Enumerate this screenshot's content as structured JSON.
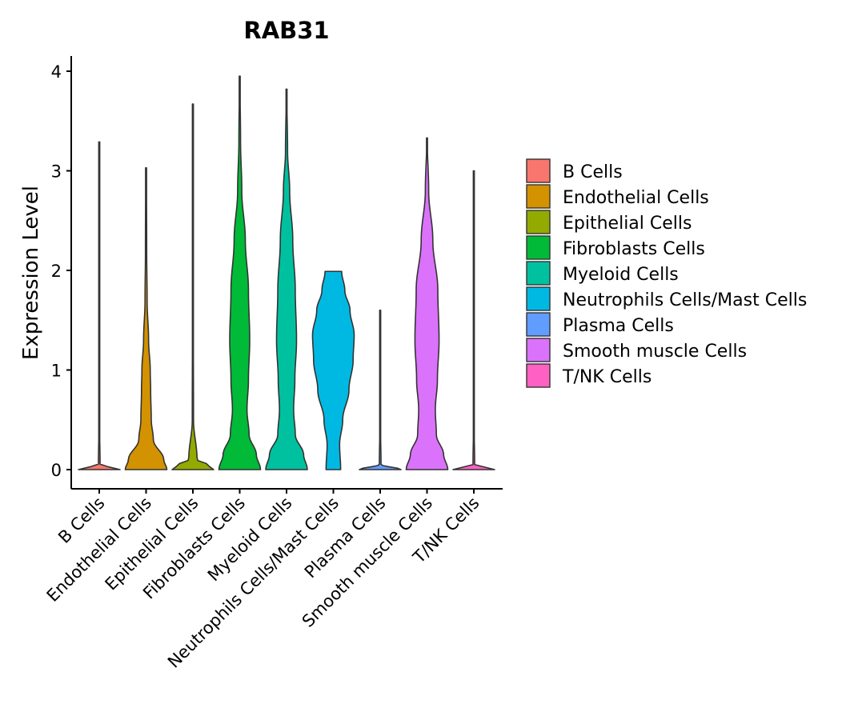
{
  "chart_data": {
    "type": "violin",
    "title": "RAB31",
    "xlabel": "",
    "ylabel": "Expression Level",
    "ylim": [
      -0.19,
      4.15
    ],
    "yticks": [
      0,
      1,
      2,
      3,
      4
    ],
    "grid": false,
    "legend_position": "right",
    "categories": [
      "B Cells",
      "Endothelial Cells",
      "Epithelial Cells",
      "Fibroblasts Cells",
      "Myeloid Cells",
      "Neutrophils Cells/Mast Cells",
      "Plasma Cells",
      "Smooth muscle Cells",
      "T/NK Cells"
    ],
    "series": [
      {
        "name": "B Cells",
        "color": "#F8766D",
        "min": 0,
        "max": 3.29,
        "density_profile": [
          [
            0,
            1
          ],
          [
            0.05,
            0.04
          ],
          [
            0.5,
            0.01
          ],
          [
            3.29,
            0.01
          ]
        ]
      },
      {
        "name": "Endothelial Cells",
        "color": "#D39200",
        "min": 0,
        "max": 3.03,
        "density_profile": [
          [
            0,
            1
          ],
          [
            0.1,
            0.85
          ],
          [
            0.3,
            0.35
          ],
          [
            0.5,
            0.25
          ],
          [
            0.8,
            0.22
          ],
          [
            1.0,
            0.2
          ],
          [
            1.3,
            0.12
          ],
          [
            1.7,
            0.05
          ],
          [
            2.2,
            0.03
          ],
          [
            3.03,
            0.02
          ]
        ]
      },
      {
        "name": "Epithelial Cells",
        "color": "#93AA00",
        "min": 0,
        "max": 3.67,
        "density_profile": [
          [
            0,
            1
          ],
          [
            0.05,
            0.7
          ],
          [
            0.1,
            0.2
          ],
          [
            0.5,
            0.03
          ],
          [
            1.5,
            0.02
          ],
          [
            3.67,
            0.01
          ]
        ]
      },
      {
        "name": "Fibroblasts Cells",
        "color": "#00BA38",
        "min": 0,
        "max": 3.95,
        "density_profile": [
          [
            0,
            1
          ],
          [
            0.15,
            0.8
          ],
          [
            0.35,
            0.45
          ],
          [
            0.6,
            0.35
          ],
          [
            0.9,
            0.42
          ],
          [
            1.3,
            0.48
          ],
          [
            1.8,
            0.42
          ],
          [
            2.3,
            0.27
          ],
          [
            2.8,
            0.1
          ],
          [
            3.3,
            0.04
          ],
          [
            3.95,
            0.01
          ]
        ]
      },
      {
        "name": "Myeloid Cells",
        "color": "#00C19F",
        "min": 0,
        "max": 3.82,
        "density_profile": [
          [
            0,
            1
          ],
          [
            0.15,
            0.82
          ],
          [
            0.35,
            0.42
          ],
          [
            0.6,
            0.34
          ],
          [
            0.9,
            0.4
          ],
          [
            1.3,
            0.48
          ],
          [
            1.8,
            0.42
          ],
          [
            2.3,
            0.3
          ],
          [
            2.8,
            0.15
          ],
          [
            3.2,
            0.05
          ],
          [
            3.82,
            0.01
          ]
        ]
      },
      {
        "name": "Neutrophils Cells/Mast Cells",
        "color": "#00B9E3",
        "min": 0,
        "max": 1.99,
        "density_profile": [
          [
            0,
            0.35
          ],
          [
            0.25,
            0.3
          ],
          [
            0.5,
            0.45
          ],
          [
            0.8,
            0.75
          ],
          [
            1.1,
            0.95
          ],
          [
            1.35,
            1.0
          ],
          [
            1.6,
            0.8
          ],
          [
            1.8,
            0.55
          ],
          [
            1.99,
            0.4
          ]
        ]
      },
      {
        "name": "Plasma Cells",
        "color": "#619CFF",
        "min": 0,
        "max": 1.6,
        "density_profile": [
          [
            0,
            1
          ],
          [
            0.05,
            0.04
          ],
          [
            0.5,
            0.01
          ],
          [
            1.6,
            0.01
          ]
        ]
      },
      {
        "name": "Smooth muscle Cells",
        "color": "#DB72FB",
        "min": 0,
        "max": 3.33,
        "density_profile": [
          [
            0,
            1
          ],
          [
            0.15,
            0.8
          ],
          [
            0.35,
            0.45
          ],
          [
            0.6,
            0.4
          ],
          [
            0.9,
            0.5
          ],
          [
            1.3,
            0.58
          ],
          [
            1.8,
            0.52
          ],
          [
            2.3,
            0.28
          ],
          [
            2.8,
            0.08
          ],
          [
            3.33,
            0.01
          ]
        ]
      },
      {
        "name": "T/NK Cells",
        "color": "#FF61C3",
        "min": 0,
        "max": 3.0,
        "density_profile": [
          [
            0,
            1
          ],
          [
            0.05,
            0.04
          ],
          [
            0.5,
            0.01
          ],
          [
            3.0,
            0.01
          ]
        ]
      }
    ],
    "legend": [
      {
        "label": "B Cells",
        "color": "#F8766D"
      },
      {
        "label": "Endothelial Cells",
        "color": "#D39200"
      },
      {
        "label": "Epithelial Cells",
        "color": "#93AA00"
      },
      {
        "label": "Fibroblasts Cells",
        "color": "#00BA38"
      },
      {
        "label": "Myeloid Cells",
        "color": "#00C19F"
      },
      {
        "label": "Neutrophils Cells/Mast Cells",
        "color": "#00B9E3"
      },
      {
        "label": "Plasma Cells",
        "color": "#619CFF"
      },
      {
        "label": "Smooth muscle Cells",
        "color": "#DB72FB"
      },
      {
        "label": "T/NK Cells",
        "color": "#FF61C3"
      }
    ]
  }
}
